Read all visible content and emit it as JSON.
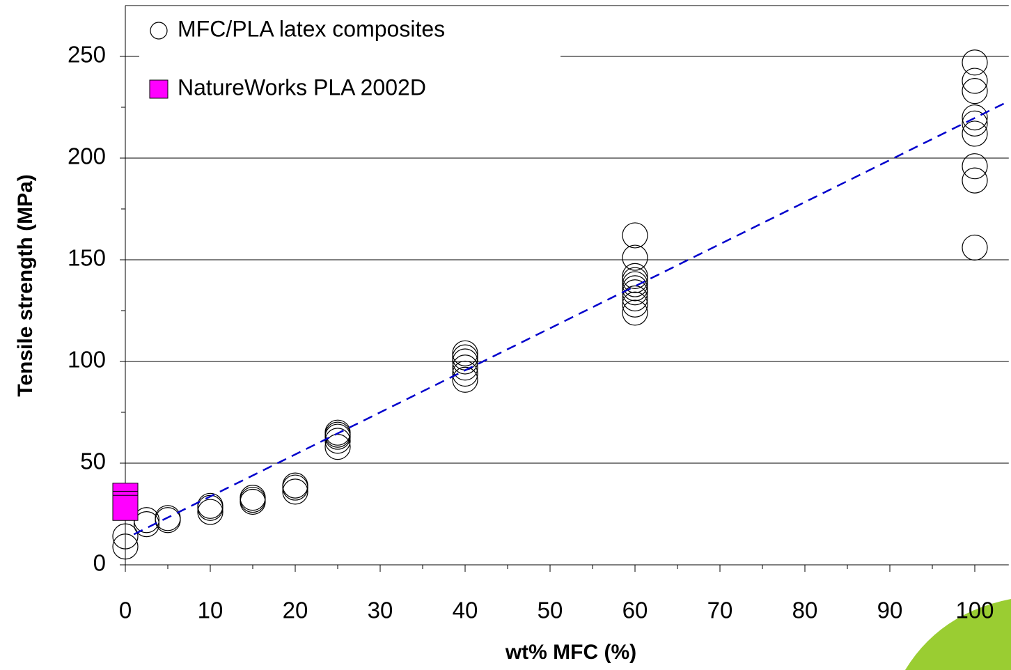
{
  "chart_data": {
    "type": "scatter",
    "xlabel": "wt% MFC (%)",
    "ylabel": "Tensile strength (MPa)",
    "xlim": [
      0,
      104
    ],
    "ylim": [
      0,
      275
    ],
    "xticks": [
      0,
      10,
      20,
      30,
      40,
      50,
      60,
      70,
      80,
      90,
      100
    ],
    "yticks": [
      0,
      50,
      100,
      150,
      200,
      250
    ],
    "grid": true,
    "legend": "upper left",
    "series": [
      {
        "name": "MFC/PLA latex composites",
        "color": "#000000",
        "marker": "circle",
        "x": [
          0,
          0,
          2.5,
          2.5,
          5,
          5,
          10,
          10,
          10,
          15,
          15,
          15,
          20,
          20,
          20,
          25,
          25,
          25,
          25,
          25,
          40,
          40,
          40,
          40,
          40,
          40,
          60,
          60,
          60,
          60,
          60,
          60,
          60,
          60,
          60,
          60,
          100,
          100,
          100,
          100,
          100,
          100,
          100,
          100,
          100
        ],
        "values": [
          9,
          14,
          20,
          22,
          22,
          23,
          26,
          28,
          29,
          31,
          32,
          33,
          36,
          38,
          39,
          58,
          61,
          63,
          64,
          65,
          91,
          94,
          97,
          100,
          102,
          104,
          124,
          128,
          131,
          134,
          136,
          138,
          140,
          142,
          151,
          162,
          156,
          189,
          196,
          212,
          217,
          220,
          233,
          238,
          247
        ]
      },
      {
        "name": "NatureWorks PLA 2002D",
        "color": "#ff00ff",
        "marker": "square",
        "x": [
          0,
          0,
          0
        ],
        "values": [
          34,
          30,
          28
        ]
      }
    ],
    "trendline": {
      "color": "#0000cc",
      "x": [
        1,
        104
      ],
      "values": [
        15,
        228
      ]
    }
  }
}
